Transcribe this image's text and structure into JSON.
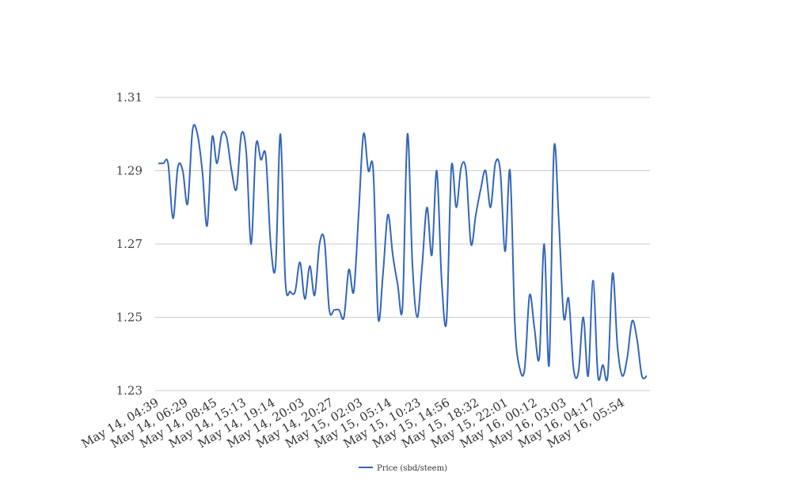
{
  "chart_data": {
    "type": "line",
    "title": "",
    "xlabel": "",
    "ylabel": "",
    "ylim": [
      1.23,
      1.31
    ],
    "yticks": [
      "1.31",
      "1.29",
      "1.27",
      "1.25",
      "1.23"
    ],
    "grid": true,
    "legend": "bottom-center",
    "x_tick_labels": [
      "May 14, 04:39",
      "May 14, 06:29",
      "May 14, 08:45",
      "May 14, 15:13",
      "May 14, 19:14",
      "May 14, 20:03",
      "May 14, 20:27",
      "May 15, 02:03",
      "May 15, 05:14",
      "May 15, 10:23",
      "May 15, 14:56",
      "May 15, 18:32",
      "May 15, 22:01",
      "May 16, 00:12",
      "May 16, 03:03",
      "May 16, 04:17",
      "May 16, 05:54"
    ],
    "series": [
      {
        "name": "Price (sbd/steem)",
        "color": "#3366bb",
        "values": [
          1.292,
          1.292,
          1.292,
          1.277,
          1.291,
          1.29,
          1.281,
          1.301,
          1.3,
          1.29,
          1.275,
          1.299,
          1.292,
          1.3,
          1.299,
          1.29,
          1.285,
          1.3,
          1.295,
          1.27,
          1.297,
          1.293,
          1.294,
          1.27,
          1.264,
          1.3,
          1.26,
          1.257,
          1.257,
          1.265,
          1.255,
          1.264,
          1.256,
          1.27,
          1.271,
          1.252,
          1.252,
          1.252,
          1.25,
          1.263,
          1.257,
          1.278,
          1.3,
          1.29,
          1.29,
          1.25,
          1.262,
          1.278,
          1.267,
          1.259,
          1.253,
          1.3,
          1.265,
          1.25,
          1.264,
          1.28,
          1.267,
          1.29,
          1.26,
          1.249,
          1.291,
          1.28,
          1.291,
          1.29,
          1.27,
          1.278,
          1.285,
          1.29,
          1.28,
          1.292,
          1.29,
          1.268,
          1.29,
          1.248,
          1.236,
          1.236,
          1.256,
          1.247,
          1.239,
          1.27,
          1.237,
          1.296,
          1.276,
          1.25,
          1.255,
          1.236,
          1.235,
          1.25,
          1.234,
          1.26,
          1.234,
          1.237,
          1.234,
          1.262,
          1.242,
          1.234,
          1.239,
          1.249,
          1.244,
          1.234,
          1.234
        ]
      }
    ]
  }
}
